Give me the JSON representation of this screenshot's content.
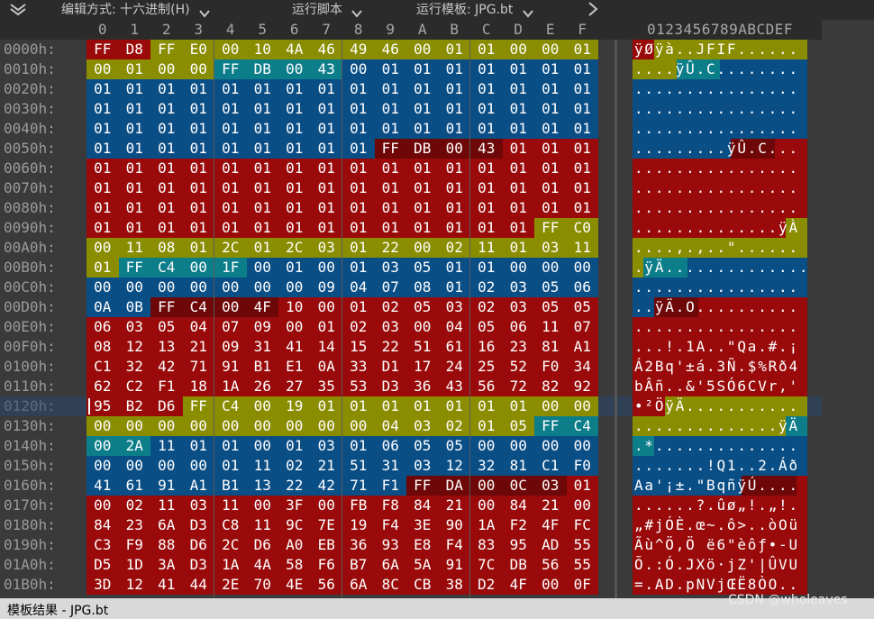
{
  "toolbar": {
    "edit_mode_label": "编辑方式: 十六进制(H)",
    "run_script_label": "运行脚本",
    "run_template_label": "运行模板: JPG.bt"
  },
  "ruler": {
    "hex_columns": [
      "0",
      "1",
      "2",
      "3",
      "4",
      "5",
      "6",
      "7",
      "8",
      "9",
      "A",
      "B",
      "C",
      "D",
      "E",
      "F"
    ],
    "ascii_header": "0123456789ABCDEF"
  },
  "palette": {
    "red": "#9a0a0a",
    "olive": "#8a8d00",
    "blue": "#0a4e86",
    "teal": "#0c7e8a",
    "darkred": "#6e0707",
    "sel": "#1e3f66"
  },
  "status": {
    "text": "模板结果 - JPG.bt"
  },
  "watermark": "CSDN @wholeaves",
  "rows": [
    {
      "offset": "0000h:",
      "hex": [
        "FF",
        "D8",
        "FF",
        "E0",
        "00",
        "10",
        "4A",
        "46",
        "49",
        "46",
        "00",
        "01",
        "01",
        "00",
        "00",
        "01"
      ],
      "color": [
        "red",
        "red",
        "olive",
        "olive",
        "olive",
        "olive",
        "olive",
        "olive",
        "olive",
        "olive",
        "olive",
        "olive",
        "olive",
        "olive",
        "olive",
        "olive"
      ],
      "ascii": "ÿØÿà..JFIF......"
    },
    {
      "offset": "0010h:",
      "hex": [
        "00",
        "01",
        "00",
        "00",
        "FF",
        "DB",
        "00",
        "43",
        "00",
        "01",
        "01",
        "01",
        "01",
        "01",
        "01",
        "01"
      ],
      "color": [
        "olive",
        "olive",
        "olive",
        "olive",
        "teal",
        "teal",
        "teal",
        "teal",
        "blue",
        "blue",
        "blue",
        "blue",
        "blue",
        "blue",
        "blue",
        "blue"
      ],
      "ascii": "....ÿÛ.C........"
    },
    {
      "offset": "0020h:",
      "hex": [
        "01",
        "01",
        "01",
        "01",
        "01",
        "01",
        "01",
        "01",
        "01",
        "01",
        "01",
        "01",
        "01",
        "01",
        "01",
        "01"
      ],
      "color": [
        "blue",
        "blue",
        "blue",
        "blue",
        "blue",
        "blue",
        "blue",
        "blue",
        "blue",
        "blue",
        "blue",
        "blue",
        "blue",
        "blue",
        "blue",
        "blue"
      ],
      "ascii": "................"
    },
    {
      "offset": "0030h:",
      "hex": [
        "01",
        "01",
        "01",
        "01",
        "01",
        "01",
        "01",
        "01",
        "01",
        "01",
        "01",
        "01",
        "01",
        "01",
        "01",
        "01"
      ],
      "color": [
        "blue",
        "blue",
        "blue",
        "blue",
        "blue",
        "blue",
        "blue",
        "blue",
        "blue",
        "blue",
        "blue",
        "blue",
        "blue",
        "blue",
        "blue",
        "blue"
      ],
      "ascii": "................"
    },
    {
      "offset": "0040h:",
      "hex": [
        "01",
        "01",
        "01",
        "01",
        "01",
        "01",
        "01",
        "01",
        "01",
        "01",
        "01",
        "01",
        "01",
        "01",
        "01",
        "01"
      ],
      "color": [
        "blue",
        "blue",
        "blue",
        "blue",
        "blue",
        "blue",
        "blue",
        "blue",
        "blue",
        "blue",
        "blue",
        "blue",
        "blue",
        "blue",
        "blue",
        "blue"
      ],
      "ascii": "................"
    },
    {
      "offset": "0050h:",
      "hex": [
        "01",
        "01",
        "01",
        "01",
        "01",
        "01",
        "01",
        "01",
        "01",
        "FF",
        "DB",
        "00",
        "43",
        "01",
        "01",
        "01"
      ],
      "color": [
        "blue",
        "blue",
        "blue",
        "blue",
        "blue",
        "blue",
        "blue",
        "blue",
        "blue",
        "darkred",
        "darkred",
        "darkred",
        "darkred",
        "red",
        "red",
        "red"
      ],
      "ascii": ".........ÿÛ.C..."
    },
    {
      "offset": "0060h:",
      "hex": [
        "01",
        "01",
        "01",
        "01",
        "01",
        "01",
        "01",
        "01",
        "01",
        "01",
        "01",
        "01",
        "01",
        "01",
        "01",
        "01"
      ],
      "color": [
        "red",
        "red",
        "red",
        "red",
        "red",
        "red",
        "red",
        "red",
        "red",
        "red",
        "red",
        "red",
        "red",
        "red",
        "red",
        "red"
      ],
      "ascii": "................"
    },
    {
      "offset": "0070h:",
      "hex": [
        "01",
        "01",
        "01",
        "01",
        "01",
        "01",
        "01",
        "01",
        "01",
        "01",
        "01",
        "01",
        "01",
        "01",
        "01",
        "01"
      ],
      "color": [
        "red",
        "red",
        "red",
        "red",
        "red",
        "red",
        "red",
        "red",
        "red",
        "red",
        "red",
        "red",
        "red",
        "red",
        "red",
        "red"
      ],
      "ascii": "................"
    },
    {
      "offset": "0080h:",
      "hex": [
        "01",
        "01",
        "01",
        "01",
        "01",
        "01",
        "01",
        "01",
        "01",
        "01",
        "01",
        "01",
        "01",
        "01",
        "01",
        "01"
      ],
      "color": [
        "red",
        "red",
        "red",
        "red",
        "red",
        "red",
        "red",
        "red",
        "red",
        "red",
        "red",
        "red",
        "red",
        "red",
        "red",
        "red"
      ],
      "ascii": "................"
    },
    {
      "offset": "0090h:",
      "hex": [
        "01",
        "01",
        "01",
        "01",
        "01",
        "01",
        "01",
        "01",
        "01",
        "01",
        "01",
        "01",
        "01",
        "01",
        "FF",
        "C0"
      ],
      "color": [
        "red",
        "red",
        "red",
        "red",
        "red",
        "red",
        "red",
        "red",
        "red",
        "red",
        "red",
        "red",
        "red",
        "red",
        "olive",
        "olive"
      ],
      "ascii": "..............ÿÀ"
    },
    {
      "offset": "00A0h:",
      "hex": [
        "00",
        "11",
        "08",
        "01",
        "2C",
        "01",
        "2C",
        "03",
        "01",
        "22",
        "00",
        "02",
        "11",
        "01",
        "03",
        "11"
      ],
      "color": [
        "olive",
        "olive",
        "olive",
        "olive",
        "olive",
        "olive",
        "olive",
        "olive",
        "olive",
        "olive",
        "olive",
        "olive",
        "olive",
        "olive",
        "olive",
        "olive"
      ],
      "ascii": "....,.,..\"......"
    },
    {
      "offset": "00B0h:",
      "hex": [
        "01",
        "FF",
        "C4",
        "00",
        "1F",
        "00",
        "01",
        "00",
        "01",
        "03",
        "05",
        "01",
        "01",
        "00",
        "00",
        "00"
      ],
      "color": [
        "olive",
        "teal",
        "teal",
        "teal",
        "teal",
        "blue",
        "blue",
        "blue",
        "blue",
        "blue",
        "blue",
        "blue",
        "blue",
        "blue",
        "blue",
        "blue"
      ],
      "ascii": ".ÿÄ.............."
    },
    {
      "offset": "00C0h:",
      "hex": [
        "00",
        "00",
        "00",
        "00",
        "00",
        "00",
        "00",
        "09",
        "04",
        "07",
        "08",
        "01",
        "02",
        "03",
        "05",
        "06"
      ],
      "color": [
        "blue",
        "blue",
        "blue",
        "blue",
        "blue",
        "blue",
        "blue",
        "blue",
        "blue",
        "blue",
        "blue",
        "blue",
        "blue",
        "blue",
        "blue",
        "blue"
      ],
      "ascii": "................"
    },
    {
      "offset": "00D0h:",
      "hex": [
        "0A",
        "0B",
        "FF",
        "C4",
        "00",
        "4F",
        "10",
        "00",
        "01",
        "02",
        "05",
        "03",
        "02",
        "03",
        "05",
        "05"
      ],
      "color": [
        "blue",
        "blue",
        "darkred",
        "darkred",
        "darkred",
        "darkred",
        "red",
        "red",
        "red",
        "red",
        "red",
        "red",
        "red",
        "red",
        "red",
        "red"
      ],
      "ascii": "..ÿÄ.O.........."
    },
    {
      "offset": "00E0h:",
      "hex": [
        "06",
        "03",
        "05",
        "04",
        "07",
        "09",
        "00",
        "01",
        "02",
        "03",
        "00",
        "04",
        "05",
        "06",
        "11",
        "07"
      ],
      "color": [
        "red",
        "red",
        "red",
        "red",
        "red",
        "red",
        "red",
        "red",
        "red",
        "red",
        "red",
        "red",
        "red",
        "red",
        "red",
        "red"
      ],
      "ascii": "................"
    },
    {
      "offset": "00F0h:",
      "hex": [
        "08",
        "12",
        "13",
        "21",
        "09",
        "31",
        "41",
        "14",
        "15",
        "22",
        "51",
        "61",
        "16",
        "23",
        "81",
        "A1"
      ],
      "color": [
        "red",
        "red",
        "red",
        "red",
        "red",
        "red",
        "red",
        "red",
        "red",
        "red",
        "red",
        "red",
        "red",
        "red",
        "red",
        "red"
      ],
      "ascii": "...!.1A..\"Qa.#.¡"
    },
    {
      "offset": "0100h:",
      "hex": [
        "C1",
        "32",
        "42",
        "71",
        "91",
        "B1",
        "E1",
        "0A",
        "33",
        "D1",
        "17",
        "24",
        "25",
        "52",
        "F0",
        "34"
      ],
      "color": [
        "red",
        "red",
        "red",
        "red",
        "red",
        "red",
        "red",
        "red",
        "red",
        "red",
        "red",
        "red",
        "red",
        "red",
        "red",
        "red"
      ],
      "ascii": "Á2Bq'±á.3Ñ.$%Rð4"
    },
    {
      "offset": "0110h:",
      "hex": [
        "62",
        "C2",
        "F1",
        "18",
        "1A",
        "26",
        "27",
        "35",
        "53",
        "D3",
        "36",
        "43",
        "56",
        "72",
        "82",
        "92"
      ],
      "color": [
        "red",
        "red",
        "red",
        "red",
        "red",
        "red",
        "red",
        "red",
        "red",
        "red",
        "red",
        "red",
        "red",
        "red",
        "red",
        "red"
      ],
      "ascii": "bÂñ..&'5SÓ6CVr,'"
    },
    {
      "offset": "0120h:",
      "hex": [
        "95",
        "B2",
        "D6",
        "FF",
        "C4",
        "00",
        "19",
        "01",
        "01",
        "01",
        "01",
        "01",
        "01",
        "01",
        "00",
        "00"
      ],
      "color": [
        "red",
        "red",
        "red",
        "olive",
        "olive",
        "olive",
        "olive",
        "olive",
        "olive",
        "olive",
        "olive",
        "olive",
        "olive",
        "olive",
        "olive",
        "olive"
      ],
      "ascii": "•²ÖÿÄ..........."
    },
    {
      "offset": "0130h:",
      "hex": [
        "00",
        "00",
        "00",
        "00",
        "00",
        "00",
        "00",
        "00",
        "00",
        "04",
        "03",
        "02",
        "01",
        "05",
        "FF",
        "C4"
      ],
      "color": [
        "olive",
        "olive",
        "olive",
        "olive",
        "olive",
        "olive",
        "olive",
        "olive",
        "olive",
        "olive",
        "olive",
        "olive",
        "olive",
        "olive",
        "teal",
        "teal"
      ],
      "ascii": "..............ÿÄ"
    },
    {
      "offset": "0140h:",
      "hex": [
        "00",
        "2A",
        "11",
        "01",
        "01",
        "00",
        "01",
        "03",
        "01",
        "06",
        "05",
        "05",
        "00",
        "00",
        "00",
        "00"
      ],
      "color": [
        "teal",
        "teal",
        "blue",
        "blue",
        "blue",
        "blue",
        "blue",
        "blue",
        "blue",
        "blue",
        "blue",
        "blue",
        "blue",
        "blue",
        "blue",
        "blue"
      ],
      "ascii": ".*.............."
    },
    {
      "offset": "0150h:",
      "hex": [
        "00",
        "00",
        "00",
        "00",
        "01",
        "11",
        "02",
        "21",
        "51",
        "31",
        "03",
        "12",
        "32",
        "81",
        "C1",
        "F0"
      ],
      "color": [
        "blue",
        "blue",
        "blue",
        "blue",
        "blue",
        "blue",
        "blue",
        "blue",
        "blue",
        "blue",
        "blue",
        "blue",
        "blue",
        "blue",
        "blue",
        "blue"
      ],
      "ascii": ".......!Q1..2.Áð"
    },
    {
      "offset": "0160h:",
      "hex": [
        "41",
        "61",
        "91",
        "A1",
        "B1",
        "13",
        "22",
        "42",
        "71",
        "F1",
        "FF",
        "DA",
        "00",
        "0C",
        "03",
        "01"
      ],
      "color": [
        "blue",
        "blue",
        "blue",
        "blue",
        "blue",
        "blue",
        "blue",
        "blue",
        "blue",
        "blue",
        "darkred",
        "darkred",
        "darkred",
        "darkred",
        "darkred",
        "red"
      ],
      "ascii": "Aa'¡±.\"BqñÿÚ...."
    },
    {
      "offset": "0170h:",
      "hex": [
        "00",
        "02",
        "11",
        "03",
        "11",
        "00",
        "3F",
        "00",
        "FB",
        "F8",
        "84",
        "21",
        "00",
        "84",
        "21",
        "00"
      ],
      "color": [
        "red",
        "red",
        "red",
        "red",
        "red",
        "red",
        "red",
        "red",
        "red",
        "red",
        "red",
        "red",
        "red",
        "red",
        "red",
        "red"
      ],
      "ascii": "......?.ûø„!.„!."
    },
    {
      "offset": "0180h:",
      "hex": [
        "84",
        "23",
        "6A",
        "D3",
        "C8",
        "11",
        "9C",
        "7E",
        "19",
        "F4",
        "3E",
        "90",
        "1A",
        "F2",
        "4F",
        "FC"
      ],
      "color": [
        "red",
        "red",
        "red",
        "red",
        "red",
        "red",
        "red",
        "red",
        "red",
        "red",
        "red",
        "red",
        "red",
        "red",
        "red",
        "red"
      ],
      "ascii": "„#jÓÈ.œ~.ô>..òOü"
    },
    {
      "offset": "0190h:",
      "hex": [
        "C3",
        "F9",
        "88",
        "D6",
        "2C",
        "D6",
        "A0",
        "EB",
        "36",
        "93",
        "E8",
        "F4",
        "83",
        "95",
        "AD",
        "55"
      ],
      "color": [
        "red",
        "red",
        "red",
        "red",
        "red",
        "red",
        "red",
        "red",
        "red",
        "red",
        "red",
        "red",
        "red",
        "red",
        "red",
        "red"
      ],
      "ascii": "Ãù^Ö,Ö ë6\"èôƒ•-U"
    },
    {
      "offset": "01A0h:",
      "hex": [
        "D5",
        "1D",
        "3A",
        "D3",
        "1A",
        "4A",
        "58",
        "F6",
        "B7",
        "6A",
        "5A",
        "91",
        "7C",
        "DB",
        "56",
        "55"
      ],
      "color": [
        "red",
        "red",
        "red",
        "red",
        "red",
        "red",
        "red",
        "red",
        "red",
        "red",
        "red",
        "red",
        "red",
        "red",
        "red",
        "red"
      ],
      "ascii": "Õ.:Ó.JXö·jZ'|ÛVU"
    },
    {
      "offset": "01B0h:",
      "hex": [
        "3D",
        "12",
        "41",
        "44",
        "2E",
        "70",
        "4E",
        "56",
        "6A",
        "8C",
        "CB",
        "38",
        "D2",
        "4F",
        "00",
        "0F"
      ],
      "color": [
        "red",
        "red",
        "red",
        "red",
        "red",
        "red",
        "red",
        "red",
        "red",
        "red",
        "red",
        "red",
        "red",
        "red",
        "red",
        "red"
      ],
      "ascii": "=.AD.pNVjŒË8ÒO.."
    }
  ]
}
